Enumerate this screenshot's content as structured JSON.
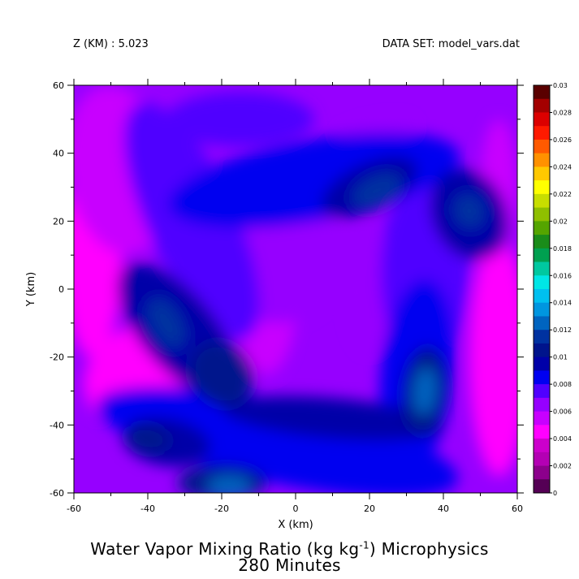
{
  "header": {
    "z_label": "Z (KM) : 5.023",
    "dataset_label": "DATA SET: model_vars.dat"
  },
  "chart_data": {
    "type": "heatmap",
    "title_prefix": "Water Vapor Mixing Ratio (kg kg",
    "title_exp": "-1",
    "title_suffix": ") Microphysics",
    "subtitle": "280 Minutes",
    "xlabel": "X (km)",
    "ylabel": "Y (km)",
    "xlim": [
      -60,
      60
    ],
    "ylim": [
      -60,
      60
    ],
    "x_ticks": [
      "-60",
      "-40",
      "-20",
      "0",
      "20",
      "40",
      "60"
    ],
    "y_ticks": [
      "60",
      "40",
      "20",
      "0",
      "-20",
      "-40",
      "-60"
    ],
    "colorbar": {
      "labels": [
        "0.03",
        "0.028",
        "0.026",
        "0.024",
        "0.022",
        "0.02",
        "0.018",
        "0.016",
        "0.014",
        "0.012",
        "0.01",
        "0.008",
        "0.006",
        "0.004",
        "0.002",
        "0"
      ],
      "colors": [
        "#5a0000",
        "#a30000",
        "#dc0000",
        "#ff1a00",
        "#ff5a00",
        "#ff9100",
        "#ffc800",
        "#ffff00",
        "#c8de00",
        "#8fbf00",
        "#55a500",
        "#1a8c1a",
        "#00a050",
        "#00c8a0",
        "#00e6e6",
        "#00c0f0",
        "#0096e0",
        "#0064c0",
        "#0032a0",
        "#00148c",
        "#0000a8",
        "#0000f0",
        "#5000ff",
        "#9600ff",
        "#c800ff",
        "#ff00ff",
        "#cc00cc",
        "#b400b4",
        "#8c008c",
        "#550055"
      ]
    },
    "field_levels": [
      0.004,
      0.005,
      0.006,
      0.007,
      0.008,
      0.009,
      0.01,
      0.011,
      0.012,
      0.013
    ]
  }
}
